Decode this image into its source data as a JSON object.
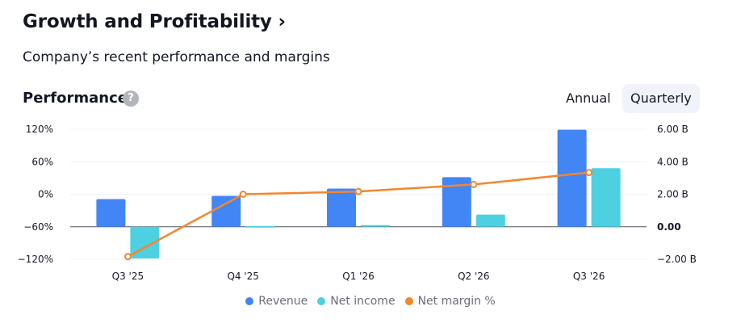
{
  "header": {
    "title": "Growth and Profitability ›",
    "subtitle": "Company’s recent performance and margins"
  },
  "performance": {
    "title": "Performance",
    "help_glyph": "?"
  },
  "period_toggle": {
    "annual_label": "Annual",
    "quarterly_label": "Quarterly",
    "selected": "Quarterly"
  },
  "legend": [
    {
      "label": "Revenue",
      "color": "#4285f4"
    },
    {
      "label": "Net income",
      "color": "#4dd0e1"
    },
    {
      "label": "Net margin %",
      "color": "#f5862c"
    }
  ],
  "chart_data": {
    "type": "bar",
    "categories": [
      "Q3 '25",
      "Q4 '25",
      "Q1 '26",
      "Q2 '26",
      "Q3 '26"
    ],
    "series": [
      {
        "name": "Revenue",
        "type": "bar",
        "axis": "right",
        "color": "#4285f4",
        "values": [
          1.7,
          1.9,
          2.35,
          3.05,
          5.97
        ]
      },
      {
        "name": "Net income",
        "type": "bar",
        "axis": "right",
        "color": "#4dd0e1",
        "values": [
          -1.95,
          0.05,
          0.1,
          0.75,
          3.6
        ]
      },
      {
        "name": "Net margin %",
        "type": "line",
        "axis": "left",
        "color": "#f5862c",
        "values": [
          -115,
          0,
          5,
          18,
          40
        ]
      }
    ],
    "left_axis": {
      "ticks": [
        "120%",
        "60%",
        "0%",
        "−60%",
        "−120%"
      ],
      "values": [
        120,
        60,
        0,
        -60,
        -120
      ],
      "range": [
        -120,
        120
      ]
    },
    "right_axis": {
      "ticks": [
        "6.00 B",
        "4.00 B",
        "2.00 B",
        "0.00",
        "−2.00 B"
      ],
      "values": [
        6,
        4,
        2,
        0,
        -2
      ],
      "range": [
        -2,
        6
      ]
    },
    "grid": true,
    "legend_position": "bottom"
  }
}
